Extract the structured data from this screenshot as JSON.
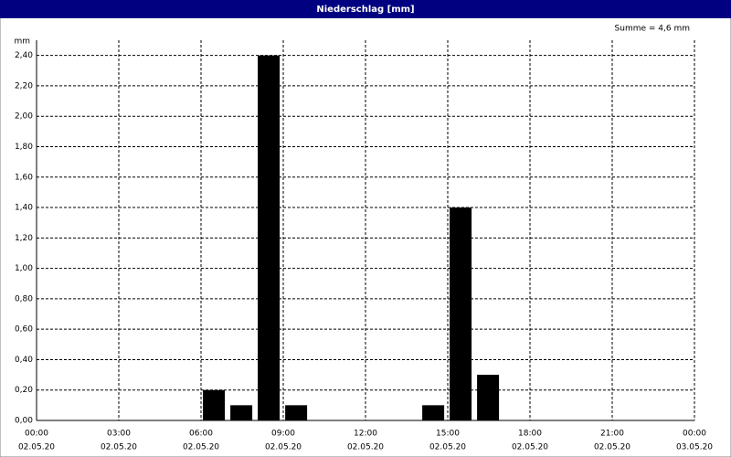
{
  "window_title": "Niederschlag [mm]",
  "chart_data": {
    "type": "bar",
    "annotation": "Summe = 4,6 mm",
    "y_label": "mm",
    "x": [
      6,
      7,
      8,
      9,
      14,
      15,
      16
    ],
    "values": [
      0.2,
      0.1,
      2.4,
      0.1,
      0.1,
      1.4,
      0.3
    ],
    "color": "#000000",
    "xlim": [
      0,
      24
    ],
    "xticks": [
      {
        "value": 0,
        "label": "00:00",
        "date": "02.05.20"
      },
      {
        "value": 3,
        "label": "03:00",
        "date": "02.05.20"
      },
      {
        "value": 6,
        "label": "06:00",
        "date": "02.05.20"
      },
      {
        "value": 9,
        "label": "09:00",
        "date": "02.05.20"
      },
      {
        "value": 12,
        "label": "12:00",
        "date": "02.05.20"
      },
      {
        "value": 15,
        "label": "15:00",
        "date": "02.05.20"
      },
      {
        "value": 18,
        "label": "18:00",
        "date": "02.05.20"
      },
      {
        "value": 21,
        "label": "21:00",
        "date": "02.05.20"
      },
      {
        "value": 24,
        "label": "00:00",
        "date": "03.05.20"
      }
    ],
    "ylim": [
      0,
      2.5
    ],
    "yticks": [
      {
        "value": 0,
        "label": "0,00"
      },
      {
        "value": 0.2,
        "label": "0,20"
      },
      {
        "value": 0.4,
        "label": "0,40"
      },
      {
        "value": 0.6,
        "label": "0,60"
      },
      {
        "value": 0.8,
        "label": "0,80"
      },
      {
        "value": 1.0,
        "label": "1,00"
      },
      {
        "value": 1.2,
        "label": "1,20"
      },
      {
        "value": 1.4,
        "label": "1,40"
      },
      {
        "value": 1.6,
        "label": "1,60"
      },
      {
        "value": 1.8,
        "label": "1,80"
      },
      {
        "value": 2.0,
        "label": "2,00"
      },
      {
        "value": 2.2,
        "label": "2,20"
      },
      {
        "value": 2.4,
        "label": "2,40"
      }
    ],
    "grid": true
  }
}
